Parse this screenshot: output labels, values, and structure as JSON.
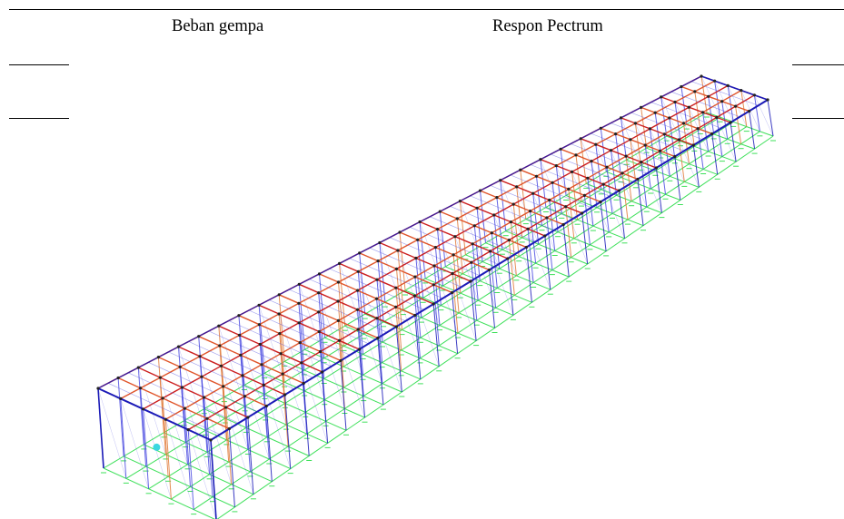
{
  "table": {
    "label": "Beban gempa",
    "value": "Respon Pectrum"
  },
  "model_view": {
    "bays_long": 30,
    "bays_short": 5,
    "colors": {
      "roof_beams": "#cc1f1f",
      "roof_beams_alt": "#e0552a",
      "frame_edges": "#1b1bb8",
      "columns": "#4a4ae0",
      "columns_alt": "#e07a3a",
      "base_grid": "#3ee05a",
      "joints": "#222222",
      "accent": "#3ad7e0"
    }
  }
}
